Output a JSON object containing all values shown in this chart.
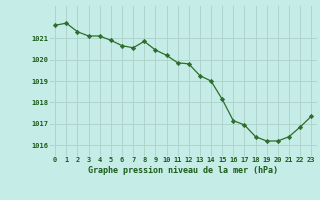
{
  "x": [
    0,
    1,
    2,
    3,
    4,
    5,
    6,
    7,
    8,
    9,
    10,
    11,
    12,
    13,
    14,
    15,
    16,
    17,
    18,
    19,
    20,
    21,
    22,
    23
  ],
  "y": [
    1021.6,
    1021.7,
    1021.3,
    1021.1,
    1021.1,
    1020.9,
    1020.65,
    1020.55,
    1020.85,
    1020.45,
    1020.2,
    1019.85,
    1019.8,
    1019.25,
    1019.0,
    1018.15,
    1017.15,
    1016.95,
    1016.4,
    1016.2,
    1016.2,
    1016.4,
    1016.85,
    1017.35
  ],
  "line_color": "#2d6e2d",
  "marker_color": "#2d6e2d",
  "bg_color": "#c5ece6",
  "grid_color": "#aed4cc",
  "xlabel": "Graphe pression niveau de la mer (hPa)",
  "xlabel_color": "#1a5c1a",
  "tick_color": "#1a5c1a",
  "ylim": [
    1015.5,
    1022.5
  ],
  "yticks": [
    1016,
    1017,
    1018,
    1019,
    1020,
    1021
  ],
  "xticks": [
    0,
    1,
    2,
    3,
    4,
    5,
    6,
    7,
    8,
    9,
    10,
    11,
    12,
    13,
    14,
    15,
    16,
    17,
    18,
    19,
    20,
    21,
    22,
    23
  ],
  "figsize": [
    3.2,
    2.0
  ],
  "dpi": 100
}
